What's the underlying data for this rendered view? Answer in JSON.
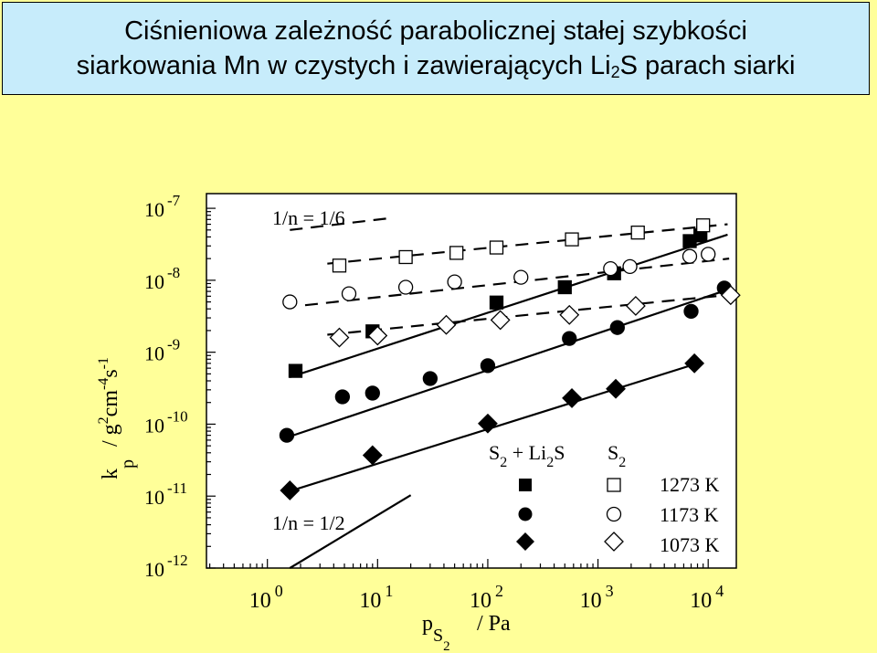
{
  "title": {
    "line1": "Ciśnieniowa zależność parabolicznej stałej szybkości",
    "line2_prefix": "siarkowania Mn w czystych i zawierających Li",
    "line2_sub": "2",
    "line2_suffix": "S parach siarki"
  },
  "chart_data": {
    "type": "scatter",
    "x_scale": "log",
    "y_scale": "log",
    "xlim": [
      0.28,
      18000
    ],
    "ylim": [
      1e-12,
      1.6e-07
    ],
    "x_ticks": [
      {
        "base": "10",
        "exp": "0"
      },
      {
        "base": "10",
        "exp": "1"
      },
      {
        "base": "10",
        "exp": "2"
      },
      {
        "base": "10",
        "exp": "3"
      },
      {
        "base": "10",
        "exp": "4"
      }
    ],
    "y_ticks": [
      {
        "base": "10",
        "exp": "-7"
      },
      {
        "base": "10",
        "exp": "-8"
      },
      {
        "base": "10",
        "exp": "-9"
      },
      {
        "base": "10",
        "exp": "-10"
      },
      {
        "base": "10",
        "exp": "-11"
      },
      {
        "base": "10",
        "exp": "-12"
      }
    ],
    "xlabel": {
      "main": "p",
      "sub": "S",
      "subsub": "2",
      "unit": "/ Pa"
    },
    "ylabel": {
      "main": "k",
      "sub": "p",
      "unit": "/ g",
      "unit_exp1": "2",
      "unit_mid": "cm",
      "unit_exp2": "-4",
      "unit_mid2": "s",
      "unit_exp3": "-1"
    },
    "annotations": {
      "slope_top": "1/n = 1/6",
      "slope_bottom": "1/n = 1/2"
    },
    "legend": {
      "header_mixed": {
        "main": "S",
        "sub1": "2",
        "mid": " + Li",
        "sub2": "2",
        "end": "S"
      },
      "header_pure": {
        "main": "S",
        "sub": "2"
      },
      "labels": [
        "1273 K",
        "1173 K",
        "1073 K"
      ]
    },
    "series": [
      {
        "marker": "square",
        "filled": true,
        "points": [
          [
            1.8,
            5.5e-10
          ],
          [
            9.0,
            1.95e-09
          ],
          [
            120.0,
            4.9e-09
          ],
          [
            500.0,
            8e-09
          ],
          [
            1400.0,
            1.25e-08
          ],
          [
            6800.0,
            3.5e-08
          ],
          [
            8500.0,
            4.2e-08
          ]
        ]
      },
      {
        "marker": "circle",
        "filled": true,
        "points": [
          [
            1.5,
            7e-11
          ],
          [
            4.8,
            2.4e-10
          ],
          [
            9.0,
            2.7e-10
          ],
          [
            30.0,
            4.3e-10
          ],
          [
            100.0,
            6.5e-10
          ],
          [
            550.0,
            1.55e-09
          ],
          [
            1500.0,
            2.2e-09
          ],
          [
            7000.0,
            3.7e-09
          ],
          [
            14000.0,
            7.8e-09
          ]
        ]
      },
      {
        "marker": "diamond",
        "filled": true,
        "points": [
          [
            1.6,
            1.2e-11
          ],
          [
            9.0,
            3.7e-11
          ],
          [
            100.0,
            1.02e-10
          ],
          [
            580.0,
            2.3e-10
          ],
          [
            1450.0,
            3.1e-10
          ],
          [
            7500.0,
            7e-10
          ]
        ]
      },
      {
        "marker": "square",
        "filled": false,
        "points": [
          [
            4.5,
            1.6e-08
          ],
          [
            18.0,
            2.1e-08
          ],
          [
            52.0,
            2.4e-08
          ],
          [
            120.0,
            2.85e-08
          ],
          [
            580.0,
            3.7e-08
          ],
          [
            2300.0,
            4.6e-08
          ],
          [
            9000.0,
            5.8e-08
          ]
        ]
      },
      {
        "marker": "circle",
        "filled": false,
        "points": [
          [
            1.6,
            5e-09
          ],
          [
            5.5,
            6.5e-09
          ],
          [
            18.0,
            8e-09
          ],
          [
            50.0,
            9.5e-09
          ],
          [
            200.0,
            1.1e-08
          ],
          [
            1300.0,
            1.45e-08
          ],
          [
            1950.0,
            1.55e-08
          ],
          [
            6800.0,
            2.15e-08
          ],
          [
            10000.0,
            2.3e-08
          ]
        ]
      },
      {
        "marker": "diamond",
        "filled": false,
        "points": [
          [
            4.5,
            1.6e-09
          ],
          [
            10.0,
            1.7e-09
          ],
          [
            42.0,
            2.4e-09
          ],
          [
            130.0,
            2.8e-09
          ],
          [
            550.0,
            3.3e-09
          ],
          [
            2200.0,
            4.4e-09
          ],
          [
            16000.0,
            6.2e-09
          ]
        ]
      }
    ],
    "fit_lines": [
      {
        "style": "solid",
        "from": [
          1.6,
          4.5e-10
        ],
        "to": [
          15000.0,
          4.3e-08
        ]
      },
      {
        "style": "solid",
        "from": [
          1.4,
          6.3e-11
        ],
        "to": [
          15500.0,
          7.5e-09
        ]
      },
      {
        "style": "solid",
        "from": [
          1.4,
          1.1e-11
        ],
        "to": [
          8000.0,
          7e-10
        ]
      },
      {
        "style": "solid",
        "from": [
          1.6,
          1e-12
        ],
        "to": [
          20.0,
          1.03e-11
        ]
      },
      {
        "style": "dashed",
        "from": [
          1.6,
          5e-08
        ],
        "to": [
          13.0,
          7.3e-08
        ]
      },
      {
        "style": "dashed",
        "from": [
          3.5,
          1.7e-08
        ],
        "to": [
          15000.0,
          6e-08
        ]
      },
      {
        "style": "dashed",
        "from": [
          2.2,
          4.5e-09
        ],
        "to": [
          15500.0,
          2e-08
        ]
      },
      {
        "style": "dashed",
        "from": [
          3.5,
          1.75e-09
        ],
        "to": [
          16000.0,
          6.3e-09
        ]
      }
    ]
  }
}
